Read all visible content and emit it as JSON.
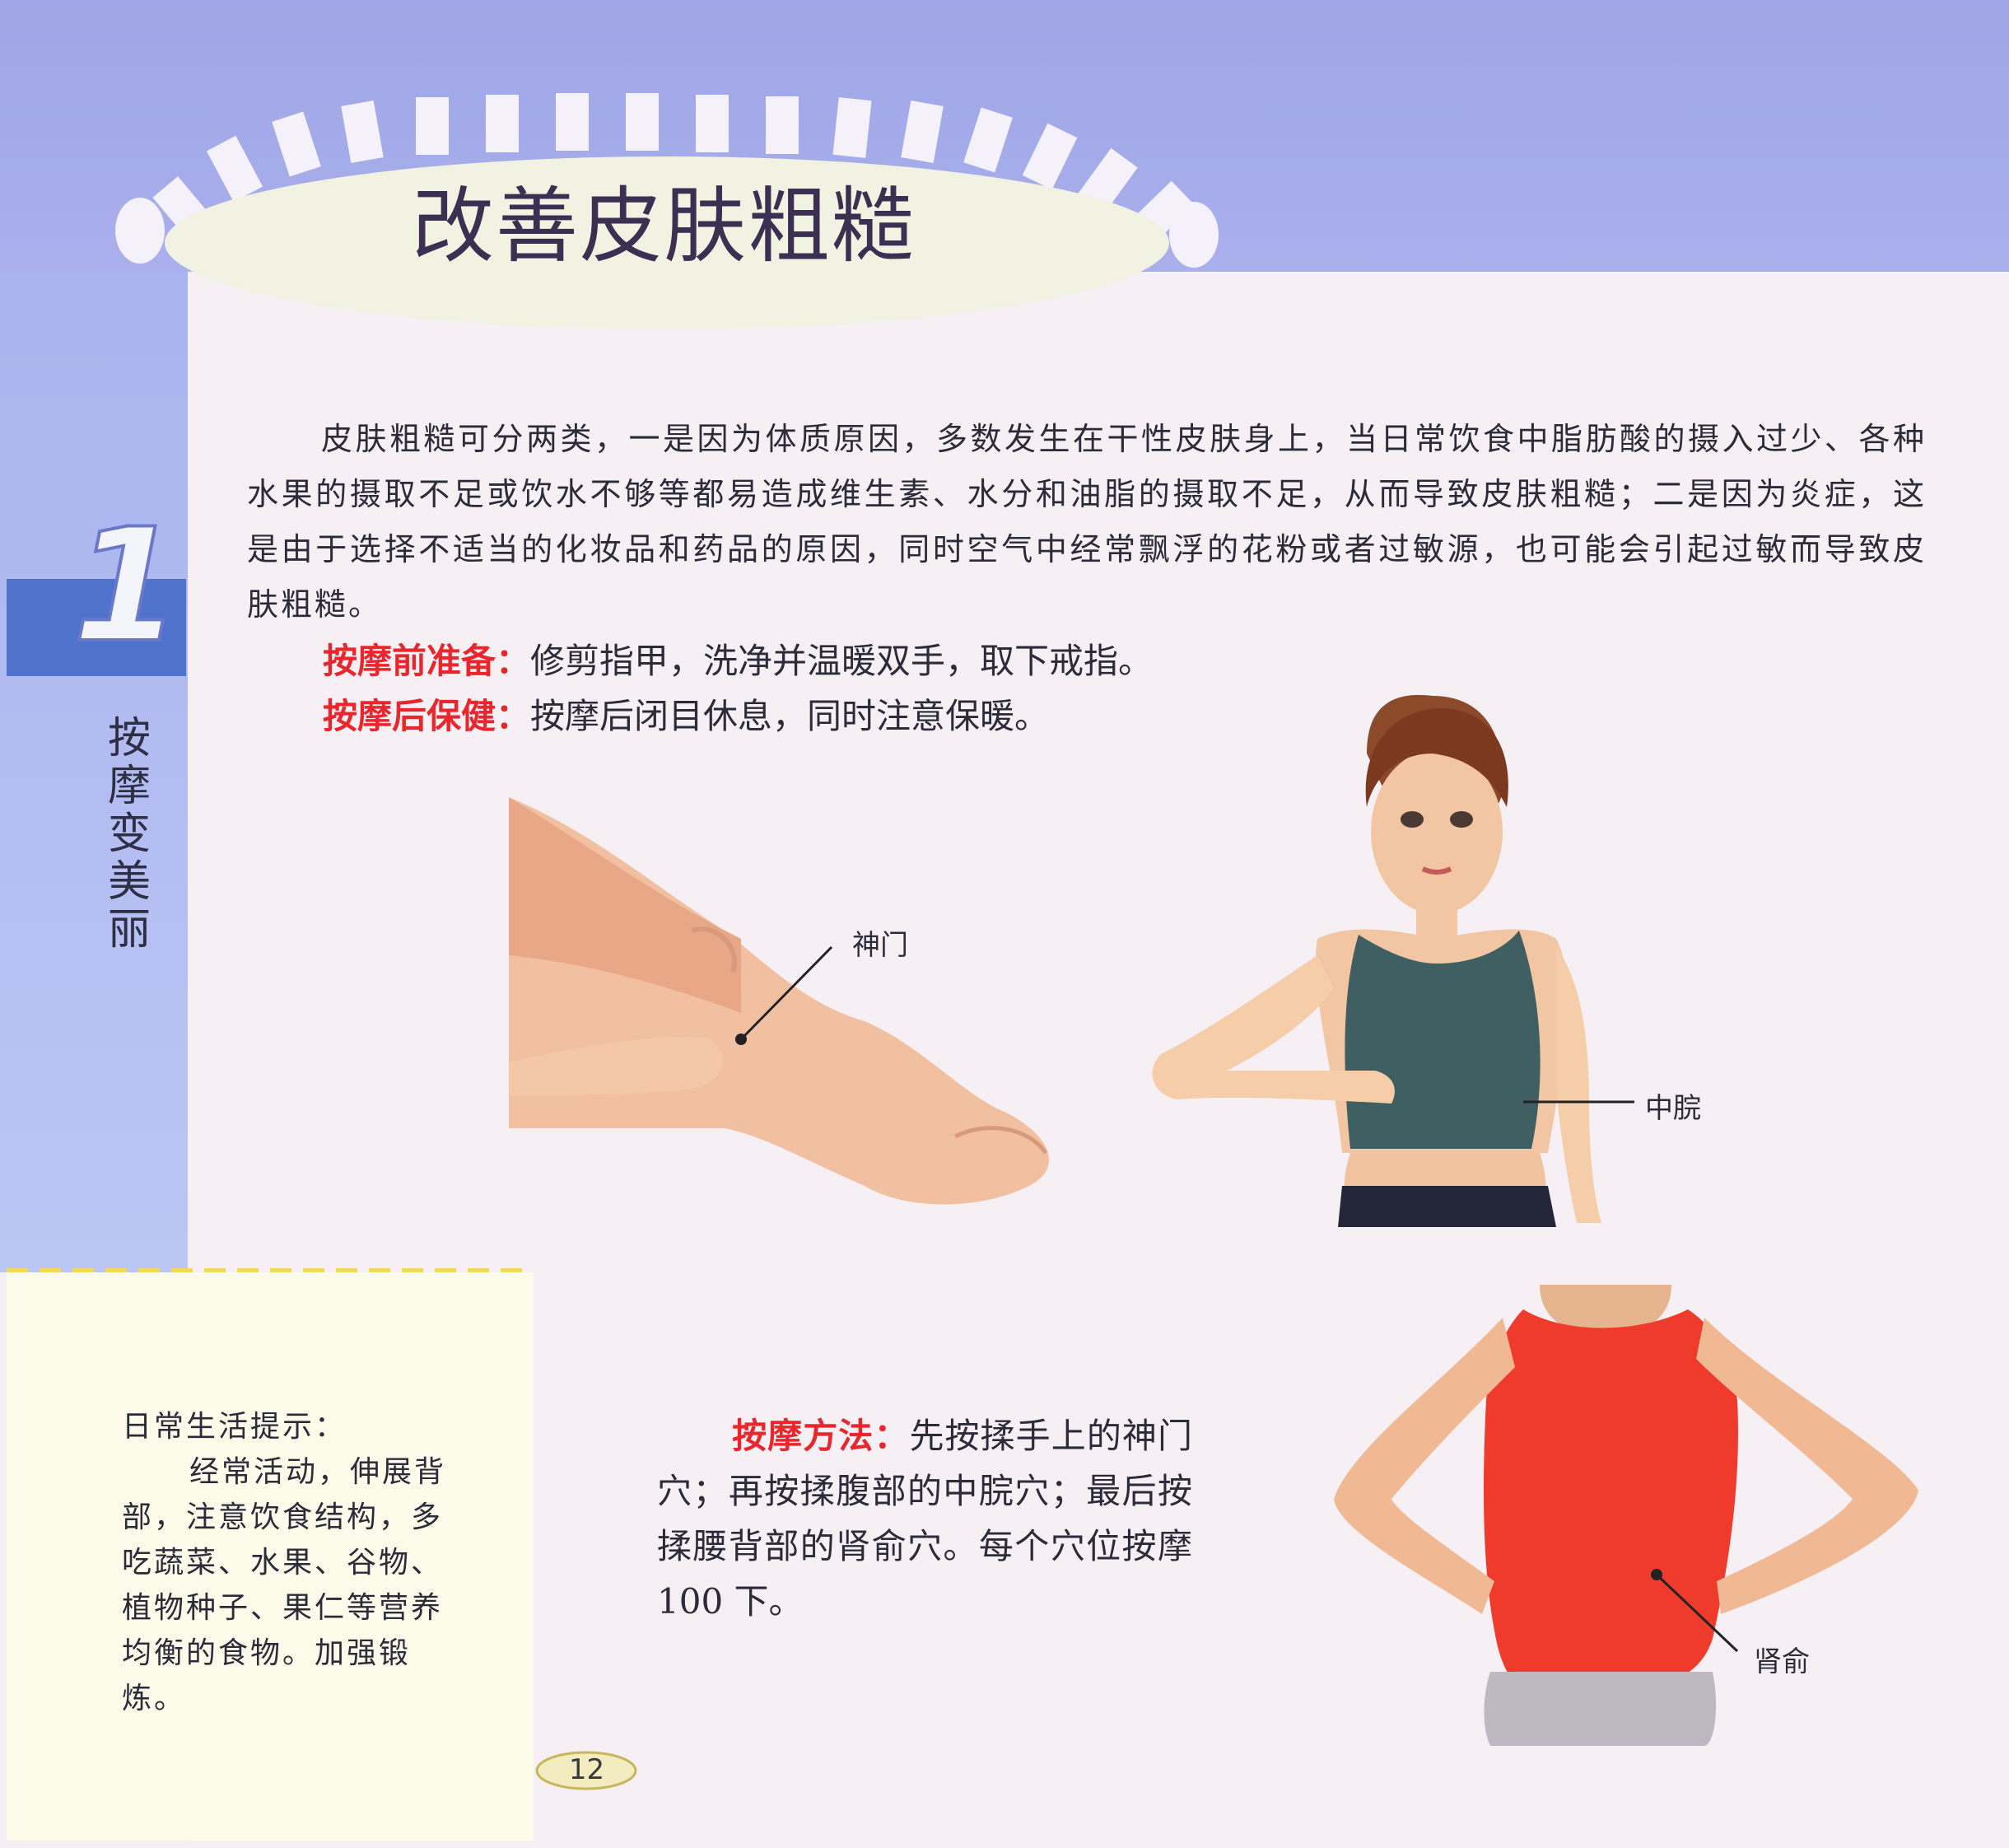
{
  "page": {
    "title": "改善皮肤粗糙",
    "chapter": {
      "number": "1",
      "title": "按摩变美丽"
    },
    "intro": "皮肤粗糙可分两类，一是因为体质原因，多数发生在干性皮肤身上，当日常饮食中脂肪酸的摄入过少、各种水果的摄取不足或饮水不够等都易造成维生素、水分和油脂的摄取不足，从而导致皮肤粗糙；二是因为炎症，这是由于选择不适当的化妆品和药品的原因，同时空气中经常飘浮的花粉或者过敏源，也可能会引起过敏而导致皮肤粗糙。",
    "before": {
      "key": "按摩前准备：",
      "text": "修剪指甲，洗净并温暖双手，取下戒指。"
    },
    "after": {
      "key": "按摩后保健：",
      "text": "按摩后闭目休息，同时注意保暖。"
    },
    "method": {
      "key": "按摩方法：",
      "text": "先按揉手上的神门穴；再按揉腹部的中脘穴；最后按揉腰背部的肾俞穴。每个穴位按摩 100 下。"
    },
    "tip": {
      "title": "日常生活提示：",
      "text": "经常活动，伸展背部，注意饮食结构，多吃蔬菜、水果、谷物、植物种子、果仁等营养均衡的食物。加强锻炼。"
    },
    "acupoints": {
      "shenmen": "神门",
      "zhongwan": "中脘",
      "shenshu": "肾俞"
    },
    "page_number": "12"
  },
  "colors": {
    "band": "#a3a9e9",
    "chapter_block": "#4f72cc",
    "accent_red": "#e8262c",
    "tip_border": "#f3d75a",
    "top_shirt": "#3f5f62",
    "red_shirt": "#ef3b2c"
  }
}
